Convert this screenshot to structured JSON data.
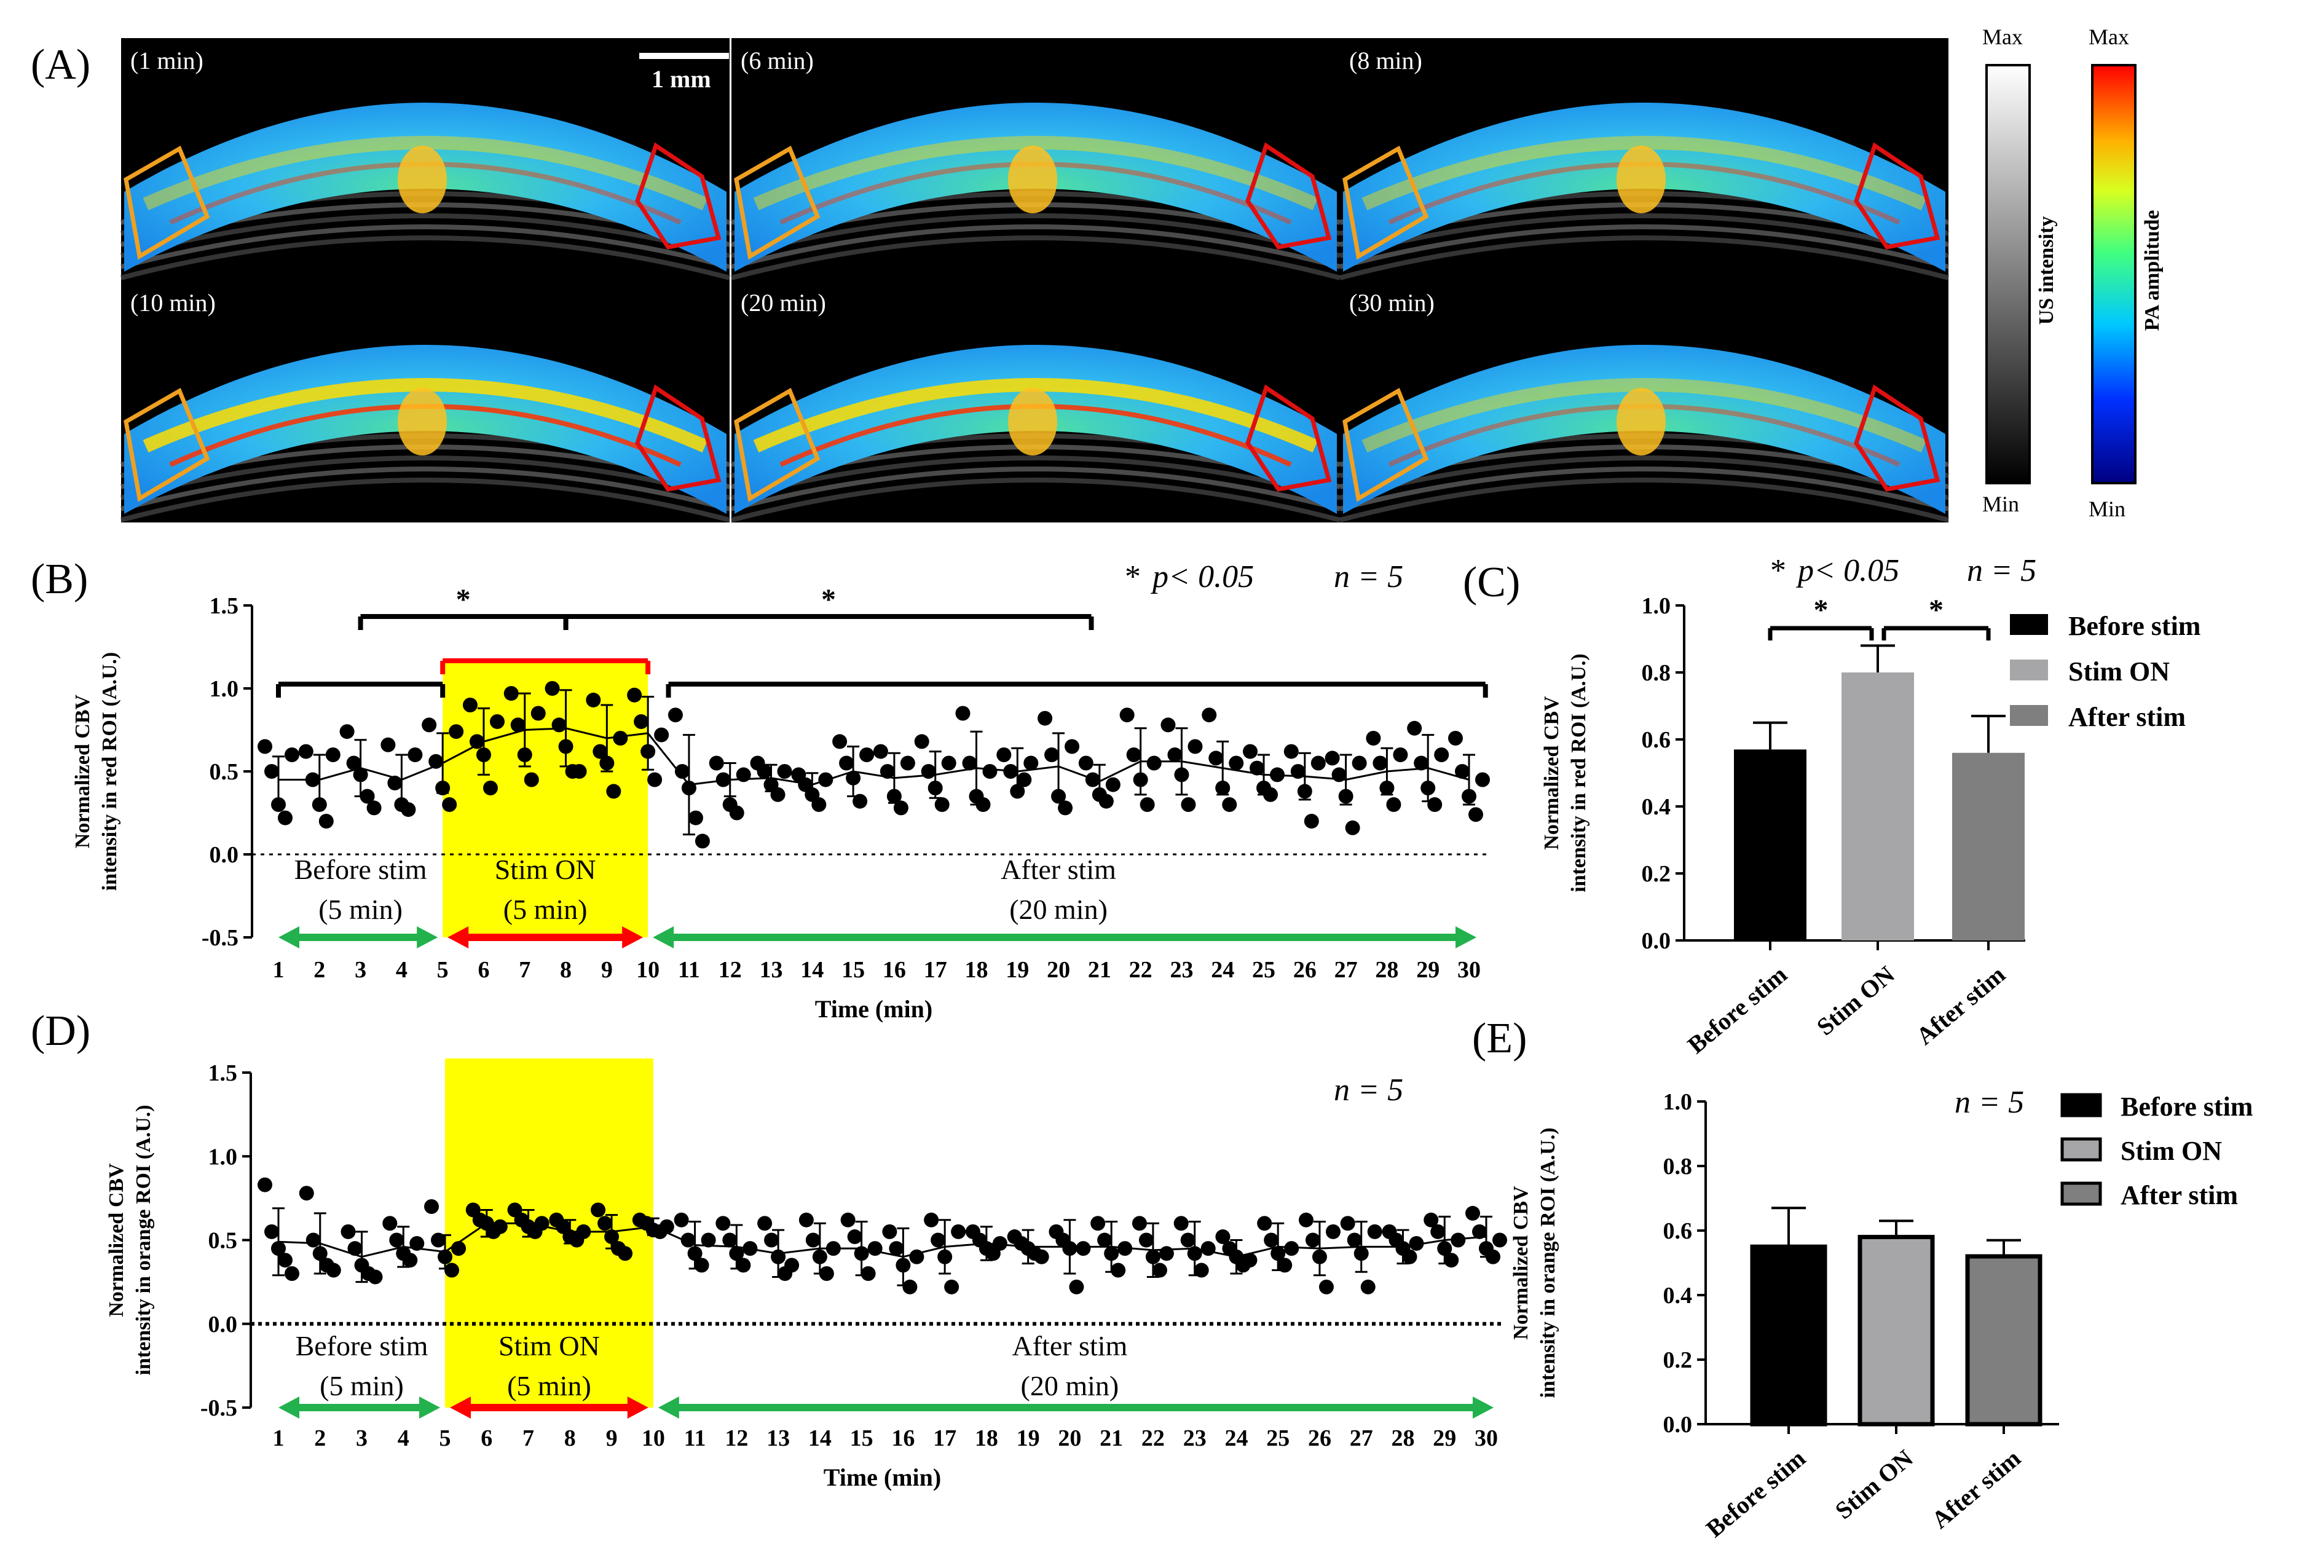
{
  "figure": {
    "panel_labels": [
      "(A)",
      "(B)",
      "(C)",
      "(D)",
      "(E)"
    ],
    "images": [
      {
        "label": "(1 min)"
      },
      {
        "label": "(6 min)"
      },
      {
        "label": "(8 min)"
      },
      {
        "label": "(10 min)"
      },
      {
        "label": "(20 min)"
      },
      {
        "label": "(30 min)"
      }
    ],
    "scale_bar": "1 mm",
    "colorbars": [
      {
        "title": "US intensity",
        "max": "Max",
        "min": "Min"
      },
      {
        "title": "PA amplitude",
        "max": "Max",
        "min": "Min"
      }
    ],
    "colors": {
      "stim_band": "#ffff00",
      "green_arrow": "#22b14c",
      "red_arrow": "#ff0000",
      "red_roi": "#e01010",
      "orange_roi": "#f0a020"
    }
  },
  "chart_data": [
    {
      "id": "B",
      "type": "scatter",
      "ylabel_lines": [
        "Normalized CBV",
        "intensity in red ROI (A.U.)"
      ],
      "xlabel": "Time (min)",
      "ylim": [
        -0.5,
        1.5
      ],
      "yticks": [
        "-0.5",
        "0.0",
        "0.5",
        "1.0",
        "1.5"
      ],
      "xticks": [
        "1",
        "2",
        "3",
        "4",
        "5",
        "6",
        "7",
        "8",
        "9",
        "10",
        "11",
        "12",
        "13",
        "14",
        "15",
        "16",
        "17",
        "18",
        "19",
        "20",
        "21",
        "22",
        "23",
        "24",
        "25",
        "26",
        "27",
        "28",
        "29",
        "30"
      ],
      "stat_text": "p< 0.05",
      "star_symbol": "*",
      "n_text": "n = 5",
      "stim_range": [
        5,
        10
      ],
      "phases": [
        {
          "name": "Before stim",
          "duration": "(5 min)",
          "range": [
            1,
            5
          ]
        },
        {
          "name": "Stim ON",
          "duration": "(5 min)",
          "range": [
            5,
            10
          ]
        },
        {
          "name": "After stim",
          "duration": "(20 min)",
          "range": [
            10,
            30
          ]
        }
      ],
      "mean": [
        0.45,
        0.45,
        0.52,
        0.45,
        0.55,
        0.68,
        0.75,
        0.76,
        0.7,
        0.73,
        0.42,
        0.45,
        0.46,
        0.42,
        0.5,
        0.46,
        0.48,
        0.52,
        0.5,
        0.53,
        0.44,
        0.56,
        0.56,
        0.52,
        0.48,
        0.47,
        0.45,
        0.5,
        0.52,
        0.45
      ],
      "sd": [
        0.14,
        0.15,
        0.17,
        0.15,
        0.18,
        0.2,
        0.22,
        0.23,
        0.2,
        0.22,
        0.3,
        0.1,
        0.08,
        0.07,
        0.15,
        0.15,
        0.14,
        0.22,
        0.14,
        0.2,
        0.1,
        0.2,
        0.2,
        0.16,
        0.12,
        0.14,
        0.15,
        0.14,
        0.2,
        0.15
      ],
      "points": [
        [
          0.65,
          0.5,
          0.3,
          0.22,
          0.6
        ],
        [
          0.62,
          0.45,
          0.3,
          0.2,
          0.6
        ],
        [
          0.74,
          0.55,
          0.48,
          0.35,
          0.28
        ],
        [
          0.66,
          0.43,
          0.3,
          0.27,
          0.6
        ],
        [
          0.78,
          0.56,
          0.4,
          0.3,
          0.74
        ],
        [
          0.9,
          0.68,
          0.6,
          0.4,
          0.8
        ],
        [
          0.97,
          0.78,
          0.6,
          0.45,
          0.85
        ],
        [
          1.0,
          0.78,
          0.65,
          0.5,
          0.5
        ],
        [
          0.93,
          0.62,
          0.55,
          0.38,
          0.7
        ],
        [
          0.96,
          0.8,
          0.62,
          0.45,
          0.72
        ],
        [
          0.84,
          0.5,
          0.4,
          0.22,
          0.08
        ],
        [
          0.55,
          0.45,
          0.3,
          0.25,
          0.48
        ],
        [
          0.55,
          0.5,
          0.42,
          0.36,
          0.5
        ],
        [
          0.48,
          0.42,
          0.36,
          0.3,
          0.45
        ],
        [
          0.68,
          0.55,
          0.46,
          0.32,
          0.6
        ],
        [
          0.62,
          0.5,
          0.35,
          0.28,
          0.55
        ],
        [
          0.68,
          0.5,
          0.4,
          0.3,
          0.55
        ],
        [
          0.85,
          0.55,
          0.35,
          0.3,
          0.5
        ],
        [
          0.6,
          0.5,
          0.38,
          0.45,
          0.55
        ],
        [
          0.82,
          0.6,
          0.35,
          0.28,
          0.65
        ],
        [
          0.55,
          0.45,
          0.36,
          0.32,
          0.42
        ],
        [
          0.84,
          0.6,
          0.45,
          0.3,
          0.55
        ],
        [
          0.78,
          0.6,
          0.48,
          0.3,
          0.65
        ],
        [
          0.84,
          0.58,
          0.4,
          0.3,
          0.55
        ],
        [
          0.62,
          0.52,
          0.4,
          0.36,
          0.48
        ],
        [
          0.62,
          0.5,
          0.38,
          0.2,
          0.55
        ],
        [
          0.58,
          0.48,
          0.35,
          0.16,
          0.55
        ],
        [
          0.7,
          0.55,
          0.4,
          0.3,
          0.6
        ],
        [
          0.76,
          0.55,
          0.4,
          0.3,
          0.6
        ],
        [
          0.7,
          0.5,
          0.35,
          0.24,
          0.45
        ]
      ],
      "sig_brackets": [
        {
          "from": 3,
          "to": 8,
          "label": "*"
        },
        {
          "from": 8,
          "to": 20.8,
          "label": "*"
        },
        {
          "from": 1,
          "to": 5,
          "label": ""
        },
        {
          "from": 5,
          "to": 10,
          "label": ""
        },
        {
          "from": 10.5,
          "to": 30.4,
          "label": ""
        }
      ]
    },
    {
      "id": "C",
      "type": "bar",
      "ylabel_lines": [
        "Normalized CBV",
        "intensity in red ROI (A.U.)"
      ],
      "ylim": [
        0,
        1.0
      ],
      "yticks": [
        "0.0",
        "0.2",
        "0.4",
        "0.6",
        "0.8",
        "1.0"
      ],
      "categories": [
        "Before stim",
        "Stim ON",
        "After stim"
      ],
      "values": [
        0.57,
        0.8,
        0.56
      ],
      "errors": [
        0.08,
        0.08,
        0.11
      ],
      "colors": [
        "#000000",
        "#a6a6a8",
        "#7f7f7f"
      ],
      "stat_text": "p< 0.05",
      "star_symbol": "*",
      "n_text": "n = 5",
      "legend": [
        "Before stim",
        "Stim ON",
        "After stim"
      ],
      "sig": [
        {
          "from": 0,
          "to": 1,
          "label": "*"
        },
        {
          "from": 1,
          "to": 2,
          "label": "*"
        }
      ]
    },
    {
      "id": "D",
      "type": "scatter",
      "ylabel_lines": [
        "Normalized CBV",
        "intensity in orange ROI (A.U.)"
      ],
      "xlabel": "Time (min)",
      "ylim": [
        -0.5,
        1.5
      ],
      "yticks": [
        "-0.5",
        "0.0",
        "0.5",
        "1.0",
        "1.5"
      ],
      "xticks": [
        "1",
        "2",
        "3",
        "4",
        "5",
        "6",
        "7",
        "8",
        "9",
        "10",
        "11",
        "12",
        "13",
        "14",
        "15",
        "16",
        "17",
        "18",
        "19",
        "20",
        "21",
        "22",
        "23",
        "24",
        "25",
        "26",
        "27",
        "28",
        "29",
        "30"
      ],
      "n_text": "n = 5",
      "stim_range": [
        5,
        10
      ],
      "phases": [
        {
          "name": "Before stim",
          "duration": "(5 min)",
          "range": [
            1,
            5
          ]
        },
        {
          "name": "Stim ON",
          "duration": "(5 min)",
          "range": [
            5,
            10
          ]
        },
        {
          "name": "After stim",
          "duration": "(20 min)",
          "range": [
            10,
            30
          ]
        }
      ],
      "mean": [
        0.49,
        0.48,
        0.4,
        0.46,
        0.43,
        0.6,
        0.6,
        0.55,
        0.55,
        0.58,
        0.47,
        0.46,
        0.42,
        0.45,
        0.45,
        0.4,
        0.46,
        0.48,
        0.46,
        0.46,
        0.46,
        0.44,
        0.45,
        0.4,
        0.46,
        0.45,
        0.46,
        0.46,
        0.5,
        0.52
      ],
      "sd": [
        0.2,
        0.18,
        0.15,
        0.12,
        0.1,
        0.08,
        0.08,
        0.07,
        0.1,
        0.05,
        0.14,
        0.13,
        0.14,
        0.15,
        0.16,
        0.17,
        0.16,
        0.1,
        0.1,
        0.16,
        0.15,
        0.16,
        0.16,
        0.1,
        0.14,
        0.16,
        0.15,
        0.1,
        0.14,
        0.12
      ],
      "points": [
        [
          0.83,
          0.55,
          0.45,
          0.38,
          0.3
        ],
        [
          0.78,
          0.5,
          0.42,
          0.35,
          0.32
        ],
        [
          0.55,
          0.45,
          0.35,
          0.3,
          0.28
        ],
        [
          0.6,
          0.5,
          0.42,
          0.38,
          0.48
        ],
        [
          0.7,
          0.5,
          0.4,
          0.32,
          0.45
        ],
        [
          0.68,
          0.62,
          0.6,
          0.55,
          0.58
        ],
        [
          0.68,
          0.62,
          0.58,
          0.55,
          0.6
        ],
        [
          0.62,
          0.58,
          0.52,
          0.5,
          0.55
        ],
        [
          0.68,
          0.6,
          0.52,
          0.45,
          0.42
        ],
        [
          0.62,
          0.6,
          0.56,
          0.55,
          0.58
        ],
        [
          0.62,
          0.5,
          0.42,
          0.35,
          0.5
        ],
        [
          0.6,
          0.5,
          0.42,
          0.35,
          0.45
        ],
        [
          0.6,
          0.5,
          0.4,
          0.3,
          0.35
        ],
        [
          0.62,
          0.5,
          0.4,
          0.3,
          0.45
        ],
        [
          0.62,
          0.52,
          0.42,
          0.3,
          0.45
        ],
        [
          0.55,
          0.45,
          0.35,
          0.22,
          0.4
        ],
        [
          0.62,
          0.5,
          0.4,
          0.22,
          0.55
        ],
        [
          0.55,
          0.5,
          0.45,
          0.42,
          0.48
        ],
        [
          0.52,
          0.48,
          0.45,
          0.42,
          0.4
        ],
        [
          0.55,
          0.5,
          0.45,
          0.22,
          0.45
        ],
        [
          0.6,
          0.5,
          0.42,
          0.32,
          0.45
        ],
        [
          0.6,
          0.5,
          0.4,
          0.32,
          0.42
        ],
        [
          0.6,
          0.5,
          0.42,
          0.32,
          0.45
        ],
        [
          0.52,
          0.45,
          0.4,
          0.35,
          0.38
        ],
        [
          0.6,
          0.5,
          0.42,
          0.35,
          0.45
        ],
        [
          0.62,
          0.5,
          0.4,
          0.22,
          0.55
        ],
        [
          0.6,
          0.5,
          0.42,
          0.22,
          0.55
        ],
        [
          0.55,
          0.5,
          0.45,
          0.4,
          0.48
        ],
        [
          0.62,
          0.55,
          0.45,
          0.38,
          0.5
        ],
        [
          0.66,
          0.55,
          0.45,
          0.4,
          0.5
        ]
      ]
    },
    {
      "id": "E",
      "type": "bar",
      "ylabel_lines": [
        "Normalized CBV",
        "intensity in orange ROI (A.U.)"
      ],
      "ylim": [
        0,
        1.0
      ],
      "yticks": [
        "0.0",
        "0.2",
        "0.4",
        "0.6",
        "0.8",
        "1.0"
      ],
      "categories": [
        "Before stim",
        "Stim ON",
        "After stim"
      ],
      "values": [
        0.55,
        0.58,
        0.52
      ],
      "errors": [
        0.12,
        0.05,
        0.05
      ],
      "colors": [
        "#000000",
        "#a6a6a8",
        "#7f7f7f"
      ],
      "n_text": "n = 5",
      "legend": [
        "Before stim",
        "Stim ON",
        "After stim"
      ]
    }
  ]
}
